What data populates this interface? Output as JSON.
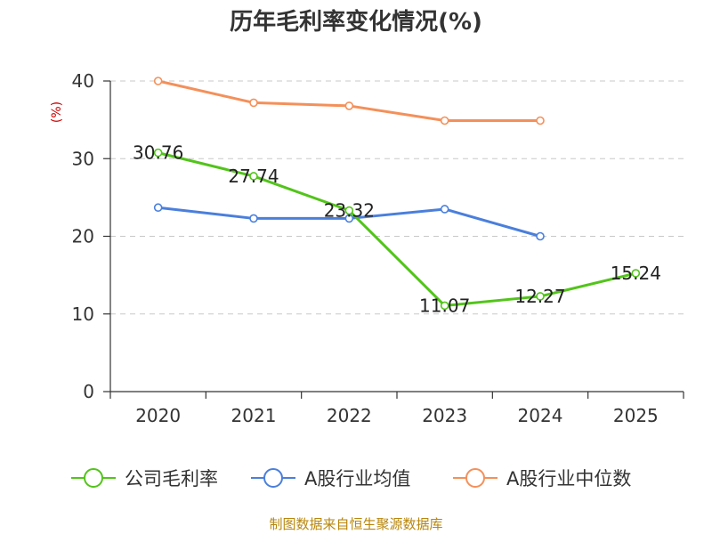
{
  "chart_data": {
    "type": "line",
    "title": "历年毛利率变化情况(%)",
    "ylabel": "(%)",
    "xlabel": "",
    "categories": [
      "2020",
      "2021",
      "2022",
      "2023",
      "2024",
      "2025"
    ],
    "ylim": [
      0,
      40
    ],
    "yticks": [
      0,
      10,
      20,
      30,
      40
    ],
    "grid": true,
    "legend_position": "bottom",
    "series": [
      {
        "name": "公司毛利率",
        "color": "#52c41a",
        "values": [
          30.76,
          27.74,
          23.32,
          11.07,
          12.27,
          15.24
        ],
        "labels": [
          "30.76",
          "27.74",
          "23.32",
          "11.07",
          "12.27",
          "15.24"
        ]
      },
      {
        "name": "A股行业均值",
        "color": "#4a7fdc",
        "values": [
          23.7,
          22.3,
          22.3,
          23.5,
          20.0,
          null
        ]
      },
      {
        "name": "A股行业中位数",
        "color": "#f4905a",
        "values": [
          40.0,
          37.2,
          36.8,
          34.9,
          34.9,
          null
        ]
      }
    ],
    "source": "制图数据来自恒生聚源数据库"
  }
}
